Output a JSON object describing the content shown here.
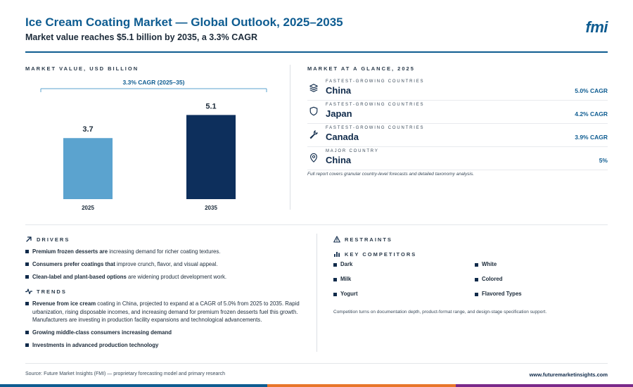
{
  "header": {
    "title": "Ice Cream Coating Market — Global Outlook, 2025–2035",
    "subtitle": "Market value reaches $5.1 billion by 2035, a 3.3% CAGR",
    "logo": "fmi"
  },
  "chart_section": {
    "label": "MARKET VALUE, USD BILLION"
  },
  "chart_data": {
    "type": "bar",
    "categories": [
      "2025",
      "2035"
    ],
    "values": [
      3.7,
      5.1
    ],
    "value_labels": [
      "3.7",
      "5.1"
    ],
    "bar_colors": [
      "#5ba3cf",
      "#0d2f5c"
    ],
    "annotation": "3.3% CAGR (2025–35)",
    "ylim": [
      0,
      5.8
    ],
    "grid": false,
    "title": "",
    "xlabel": "",
    "ylabel": ""
  },
  "glance": {
    "label": "MARKET AT A GLANCE, 2025",
    "rows": [
      {
        "icon": "layers-icon",
        "kicker": "FASTEST-GROWING COUNTRIES",
        "name": "China",
        "value": "5.0% CAGR"
      },
      {
        "icon": "shield-icon",
        "kicker": "FASTEST-GROWING COUNTRIES",
        "name": "Japan",
        "value": "4.2% CAGR"
      },
      {
        "icon": "wrench-icon",
        "kicker": "FASTEST-GROWING COUNTRIES",
        "name": "Canada",
        "value": "3.9% CAGR"
      },
      {
        "icon": "map-pin-icon",
        "kicker": "MAJOR COUNTRY",
        "name": "China",
        "value": "5%"
      }
    ],
    "note": "Full report covers granular country-level forecasts and detailed taxonomy analysis."
  },
  "drivers": {
    "label": "DRIVERS",
    "items": [
      {
        "bold": "Premium frozen desserts are",
        "text": " increasing demand for richer coating textures."
      },
      {
        "bold": "Consumers prefer coatings that",
        "text": " improve crunch, flavor, and visual appeal."
      },
      {
        "bold": "Clean-label and plant-based options",
        "text": " are widening product development work."
      }
    ]
  },
  "trends": {
    "label": "TRENDS",
    "items": [
      {
        "bold": "Revenue from ice cream",
        "text": " coating in China, projected to expand at a CAGR of 5.0% from 2025 to 2035. Rapid urbanization, rising disposable incomes, and increasing demand for premium frozen desserts fuel this growth. Manufacturers are investing in production facility expansions and technological advancements."
      },
      {
        "bold": "Growing middle-class consumers increasing demand",
        "text": ""
      },
      {
        "bold": "Investments in advanced production technology",
        "text": ""
      }
    ]
  },
  "restraints": {
    "label": "RESTRAINTS"
  },
  "competitors": {
    "label": "KEY COMPETITORS",
    "items": [
      "Dark",
      "White",
      "Milk",
      "Colored",
      "Yogurt",
      "Flavored Types"
    ],
    "note": "Competition turns on documentation depth, product-format range, and design-stage specification support."
  },
  "footer": {
    "source": "Source: Future Market Insights (FMI) — proprietary forecasting model and primary research",
    "site": "www.futuremarketinsights.com",
    "bar_colors": [
      "#0e5c91",
      "#e8762b",
      "#7a2a8a"
    ]
  }
}
